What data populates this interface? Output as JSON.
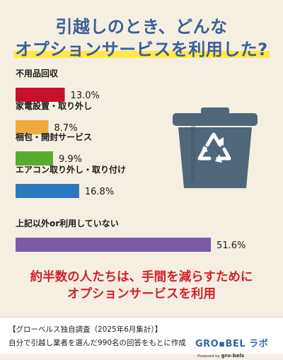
{
  "title": {
    "line1": "引越しのとき、どんな",
    "line2": "オプションサービスを利用した?"
  },
  "chart_data": {
    "type": "bar",
    "orientation": "horizontal",
    "categories": [
      "不用品回収",
      "家電設置・取り外し",
      "梱包・開封サービス",
      "エアコン取り外し・取り付け",
      "上記以外or利用していない"
    ],
    "values": [
      13.0,
      8.7,
      9.9,
      16.8,
      51.6
    ],
    "value_labels": [
      "13.0%",
      "8.7%",
      "9.9%",
      "16.8%",
      "51.6%"
    ],
    "bar_colors": [
      "#c8102e",
      "#eeaa3c",
      "#5aaa32",
      "#2c78be",
      "#7b5aa6"
    ],
    "unit": "%",
    "grid": false,
    "legend": "none"
  },
  "conclusion": {
    "line1": "約半数の人たちは、手間を減らすために",
    "line2": "オプションサービスを利用"
  },
  "footer": {
    "survey": "【グローベルス独自調査（2025年6月集計）】",
    "note": "自分で引越し業者を選んだ990名の回答をもとに作成",
    "logo_text": "GRO▪BEL ラボ",
    "logo_powered_prefix": "Powered by",
    "logo_powered_brand": "gro-bels"
  },
  "icon": "recycle-bin-icon",
  "colors": {
    "title": "#3c5f95",
    "highlight": "#ffe84a",
    "conclusion": "#d4212a",
    "background": "#f5efe2",
    "bin": "#4f6779"
  }
}
